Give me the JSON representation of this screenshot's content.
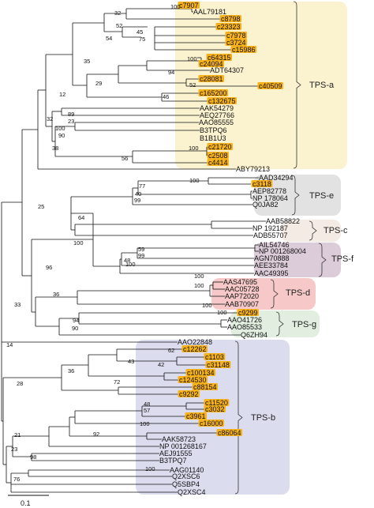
{
  "colors": {
    "TPS-a": "#fbf2cf",
    "TPS-e": "#e2e2e2",
    "TPS-c": "#f4ebe5",
    "TPS-f": "#dccbd8",
    "TPS-d": "#f6c8c8",
    "TPS-g": "#e1eee0",
    "TPS-b": "#dcdcef",
    "highlight": "#f7b11a",
    "branch": "#111111"
  },
  "groups": [
    {
      "label": "TPS-a"
    },
    {
      "label": "TPS-e"
    },
    {
      "label": "TPS-c"
    },
    {
      "label": "TPS-f"
    },
    {
      "label": "TPS-d"
    },
    {
      "label": "TPS-g"
    },
    {
      "label": "TPS-b"
    }
  ],
  "leaves": [
    {
      "label": "c7907",
      "hl": true
    },
    {
      "label": "AAL79181",
      "hl": false
    },
    {
      "label": "c8798",
      "hl": true
    },
    {
      "label": "c23323",
      "hl": true
    },
    {
      "label": "c7978",
      "hl": true
    },
    {
      "label": "c3724",
      "hl": true
    },
    {
      "label": "c15986",
      "hl": true
    },
    {
      "label": "c64315",
      "hl": true
    },
    {
      "label": "c24094",
      "hl": true
    },
    {
      "label": "ADT64307",
      "hl": false
    },
    {
      "label": "c28081",
      "hl": true
    },
    {
      "label": "c40509",
      "hl": true
    },
    {
      "label": "c165200",
      "hl": true
    },
    {
      "label": "c132675",
      "hl": true
    },
    {
      "label": "AAK54279",
      "hl": false
    },
    {
      "label": "AEQ27766",
      "hl": false
    },
    {
      "label": "AAO85555",
      "hl": false
    },
    {
      "label": "B3TPQ6",
      "hl": false
    },
    {
      "label": "B1B1U3",
      "hl": false
    },
    {
      "label": "c21720",
      "hl": true
    },
    {
      "label": "c2508",
      "hl": true
    },
    {
      "label": "c4414",
      "hl": true
    },
    {
      "label": "ABY79213",
      "hl": false
    },
    {
      "label": "AAD34294",
      "hl": false
    },
    {
      "label": "c3118",
      "hl": true
    },
    {
      "label": "AEP82778",
      "hl": false
    },
    {
      "label": "NP 178064",
      "hl": false
    },
    {
      "label": "Q0JA82",
      "hl": false
    },
    {
      "label": "AAB58822",
      "hl": false
    },
    {
      "label": "NP 192187",
      "hl": false
    },
    {
      "label": "ADB55707",
      "hl": false
    },
    {
      "label": "AIL54746",
      "hl": false
    },
    {
      "label": "NP 001268004",
      "hl": false
    },
    {
      "label": "AGN70888",
      "hl": false
    },
    {
      "label": "AEE33784",
      "hl": false
    },
    {
      "label": "AAC49395",
      "hl": false
    },
    {
      "label": "AAS47695",
      "hl": false
    },
    {
      "label": "AAC05728",
      "hl": false
    },
    {
      "label": "AAP72020",
      "hl": false
    },
    {
      "label": "AAB70907",
      "hl": false
    },
    {
      "label": "c9299",
      "hl": true
    },
    {
      "label": "AAO41726",
      "hl": false
    },
    {
      "label": "AAO85533",
      "hl": false
    },
    {
      "label": "Q6ZH94",
      "hl": false
    },
    {
      "label": "AAO22848",
      "hl": false
    },
    {
      "label": "c12262",
      "hl": true
    },
    {
      "label": "c1103",
      "hl": true
    },
    {
      "label": "c31148",
      "hl": true
    },
    {
      "label": "c100134",
      "hl": true
    },
    {
      "label": "c124530",
      "hl": true
    },
    {
      "label": "c88154",
      "hl": true
    },
    {
      "label": "c9292",
      "hl": true
    },
    {
      "label": "c11520",
      "hl": true
    },
    {
      "label": "c3032",
      "hl": true
    },
    {
      "label": "c3961",
      "hl": true
    },
    {
      "label": "c16000",
      "hl": true
    },
    {
      "label": "c86064",
      "hl": true
    },
    {
      "label": "AAK58723",
      "hl": false
    },
    {
      "label": "NP 001268167",
      "hl": false
    },
    {
      "label": "AEJ91555",
      "hl": false
    },
    {
      "label": "B3TPQ7",
      "hl": false
    },
    {
      "label": "AAG01140",
      "hl": false
    },
    {
      "label": "Q2XSC6",
      "hl": false
    },
    {
      "label": "Q5SBP4",
      "hl": false
    },
    {
      "label": "Q2XSC4",
      "hl": false
    }
  ],
  "supports": [
    {
      "v": "100"
    },
    {
      "v": "32"
    },
    {
      "v": "52"
    },
    {
      "v": "45"
    },
    {
      "v": "75"
    },
    {
      "v": "54"
    },
    {
      "v": "100"
    },
    {
      "v": "35"
    },
    {
      "v": "94"
    },
    {
      "v": "52"
    },
    {
      "v": "29"
    },
    {
      "v": "46"
    },
    {
      "v": "12"
    },
    {
      "v": "89"
    },
    {
      "v": "23"
    },
    {
      "v": "32"
    },
    {
      "v": "100"
    },
    {
      "v": "90"
    },
    {
      "v": "38"
    },
    {
      "v": "100"
    },
    {
      "v": "56"
    },
    {
      "v": "100"
    },
    {
      "v": "77"
    },
    {
      "v": "40"
    },
    {
      "v": "99"
    },
    {
      "v": "64"
    },
    {
      "v": "100"
    },
    {
      "v": "100"
    },
    {
      "v": "59"
    },
    {
      "v": "99"
    },
    {
      "v": "48"
    },
    {
      "v": "100"
    },
    {
      "v": "25"
    },
    {
      "v": "96"
    },
    {
      "v": "100"
    },
    {
      "v": "100"
    },
    {
      "v": "36"
    },
    {
      "v": "100"
    },
    {
      "v": "94"
    },
    {
      "v": "90"
    },
    {
      "v": "33"
    },
    {
      "v": "14"
    },
    {
      "v": "62"
    },
    {
      "v": "43"
    },
    {
      "v": "42"
    },
    {
      "v": "36"
    },
    {
      "v": "72"
    },
    {
      "v": "28"
    },
    {
      "v": "48"
    },
    {
      "v": "57"
    },
    {
      "v": "100"
    },
    {
      "v": "92"
    },
    {
      "v": "21"
    },
    {
      "v": "23"
    },
    {
      "v": "98"
    },
    {
      "v": "100"
    },
    {
      "v": "76"
    }
  ],
  "scale_label": "0.1"
}
